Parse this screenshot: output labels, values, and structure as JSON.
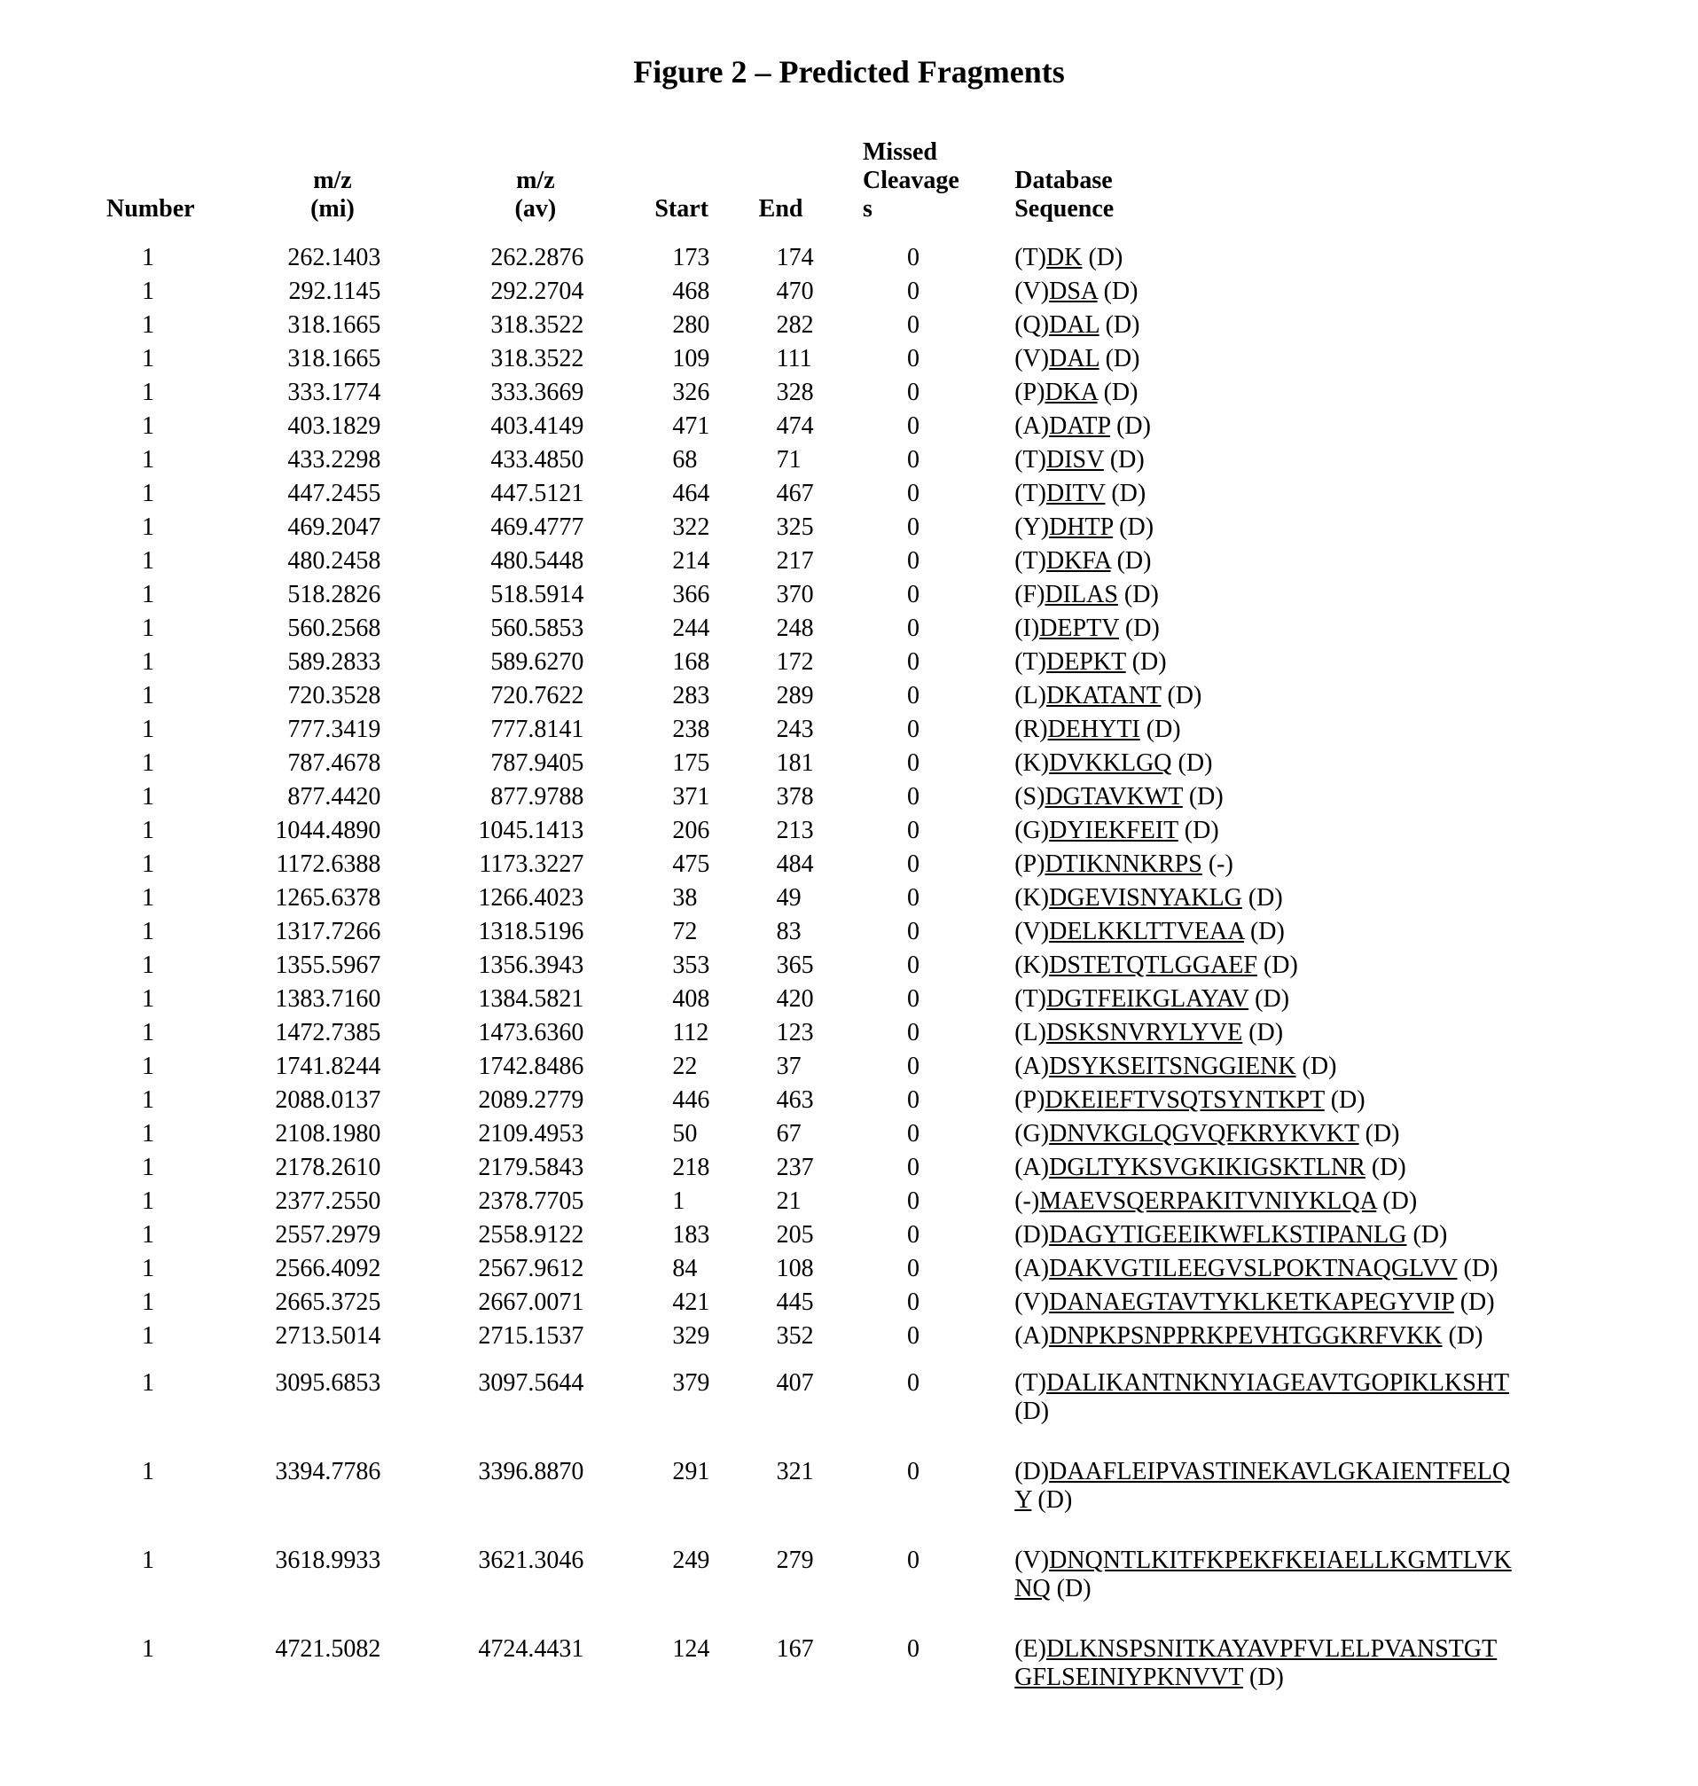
{
  "figureTitle": "Figure 2 – Predicted Fragments",
  "columns": {
    "number": "Number",
    "mz_mi": "m/z\n(mi)",
    "mz_av": "m/z\n(av)",
    "start": "Start",
    "end": "End",
    "missed": "Missed\nCleavage\ns",
    "sequence": "Database\nSequence"
  },
  "rows": [
    {
      "n": "1",
      "mz_mi": "262.1403",
      "mz_av": "262.2876",
      "start": "173",
      "end": "174",
      "mc": "0",
      "pre": "(T)",
      "core": "DK",
      "suf": " (D)"
    },
    {
      "n": "1",
      "mz_mi": "292.1145",
      "mz_av": "292.2704",
      "start": "468",
      "end": "470",
      "mc": "0",
      "pre": "(V)",
      "core": "DSA",
      "suf": " (D)"
    },
    {
      "n": "1",
      "mz_mi": "318.1665",
      "mz_av": "318.3522",
      "start": "280",
      "end": "282",
      "mc": "0",
      "pre": "(Q)",
      "core": "DAL",
      "suf": " (D)"
    },
    {
      "n": "1",
      "mz_mi": "318.1665",
      "mz_av": "318.3522",
      "start": "109",
      "end": "111",
      "mc": "0",
      "pre": "(V)",
      "core": "DAL",
      "suf": " (D)"
    },
    {
      "n": "1",
      "mz_mi": "333.1774",
      "mz_av": "333.3669",
      "start": "326",
      "end": "328",
      "mc": "0",
      "pre": "(P)",
      "core": "DKA",
      "suf": " (D)"
    },
    {
      "n": "1",
      "mz_mi": "403.1829",
      "mz_av": "403.4149",
      "start": "471",
      "end": "474",
      "mc": "0",
      "pre": "(A)",
      "core": "DATP",
      "suf": " (D)"
    },
    {
      "n": "1",
      "mz_mi": "433.2298",
      "mz_av": "433.4850",
      "start": "68",
      "end": "71",
      "mc": "0",
      "pre": "(T)",
      "core": "DISV",
      "suf": " (D)"
    },
    {
      "n": "1",
      "mz_mi": "447.2455",
      "mz_av": "447.5121",
      "start": "464",
      "end": "467",
      "mc": "0",
      "pre": "(T)",
      "core": "DITV",
      "suf": " (D)"
    },
    {
      "n": "1",
      "mz_mi": "469.2047",
      "mz_av": "469.4777",
      "start": "322",
      "end": "325",
      "mc": "0",
      "pre": "(Y)",
      "core": "DHTP",
      "suf": " (D)"
    },
    {
      "n": "1",
      "mz_mi": "480.2458",
      "mz_av": "480.5448",
      "start": "214",
      "end": "217",
      "mc": "0",
      "pre": "(T)",
      "core": "DKFA",
      "suf": " (D)"
    },
    {
      "n": "1",
      "mz_mi": "518.2826",
      "mz_av": "518.5914",
      "start": "366",
      "end": "370",
      "mc": "0",
      "pre": "(F)",
      "core": "DILAS",
      "suf": " (D)"
    },
    {
      "n": "1",
      "mz_mi": "560.2568",
      "mz_av": "560.5853",
      "start": "244",
      "end": "248",
      "mc": "0",
      "pre": "(I)",
      "core": "DEPTV",
      "suf": " (D)"
    },
    {
      "n": "1",
      "mz_mi": "589.2833",
      "mz_av": "589.6270",
      "start": "168",
      "end": "172",
      "mc": "0",
      "pre": "(T)",
      "core": "DEPKT",
      "suf": " (D)"
    },
    {
      "n": "1",
      "mz_mi": "720.3528",
      "mz_av": "720.7622",
      "start": "283",
      "end": "289",
      "mc": "0",
      "pre": "(L)",
      "core": "DKATANT",
      "suf": " (D)"
    },
    {
      "n": "1",
      "mz_mi": "777.3419",
      "mz_av": "777.8141",
      "start": "238",
      "end": "243",
      "mc": "0",
      "pre": "(R)",
      "core": "DEHYTI",
      "suf": " (D)"
    },
    {
      "n": "1",
      "mz_mi": "787.4678",
      "mz_av": "787.9405",
      "start": "175",
      "end": "181",
      "mc": "0",
      "pre": "(K)",
      "core": "DVKKLGQ",
      "suf": " (D)"
    },
    {
      "n": "1",
      "mz_mi": "877.4420",
      "mz_av": "877.9788",
      "start": "371",
      "end": "378",
      "mc": "0",
      "pre": "(S)",
      "core": "DGTAVKWT",
      "suf": " (D)"
    },
    {
      "n": "1",
      "mz_mi": "1044.4890",
      "mz_av": "1045.1413",
      "start": "206",
      "end": "213",
      "mc": "0",
      "pre": "(G)",
      "core": "DYIEKFEIT",
      "suf": " (D)"
    },
    {
      "n": "1",
      "mz_mi": "1172.6388",
      "mz_av": "1173.3227",
      "start": "475",
      "end": "484",
      "mc": "0",
      "pre": "(P)",
      "core": "DTIKNNKRPS",
      "suf": " (-)"
    },
    {
      "n": "1",
      "mz_mi": "1265.6378",
      "mz_av": "1266.4023",
      "start": "38",
      "end": "49",
      "mc": "0",
      "pre": "(K)",
      "core": "DGEVISNYAKLG",
      "suf": " (D)"
    },
    {
      "n": "1",
      "mz_mi": "1317.7266",
      "mz_av": "1318.5196",
      "start": "72",
      "end": "83",
      "mc": "0",
      "pre": "(V)",
      "core": "DELKKLTTVEAA",
      "suf": " (D)"
    },
    {
      "n": "1",
      "mz_mi": "1355.5967",
      "mz_av": "1356.3943",
      "start": "353",
      "end": "365",
      "mc": "0",
      "pre": "(K)",
      "core": "DSTETQTLGGAEF",
      "suf": " (D)"
    },
    {
      "n": "1",
      "mz_mi": "1383.7160",
      "mz_av": "1384.5821",
      "start": "408",
      "end": "420",
      "mc": "0",
      "pre": "(T)",
      "core": "DGTFEIKGLAYAV",
      "suf": " (D)"
    },
    {
      "n": "1",
      "mz_mi": "1472.7385",
      "mz_av": "1473.6360",
      "start": "112",
      "end": "123",
      "mc": "0",
      "pre": "(L)",
      "core": "DSKSNVRYLYVE",
      "suf": " (D)"
    },
    {
      "n": "1",
      "mz_mi": "1741.8244",
      "mz_av": "1742.8486",
      "start": "22",
      "end": "37",
      "mc": "0",
      "pre": "(A)",
      "core": "DSYKSEITSNGGIENK",
      "suf": " (D)"
    },
    {
      "n": "1",
      "mz_mi": "2088.0137",
      "mz_av": "2089.2779",
      "start": "446",
      "end": "463",
      "mc": "0",
      "pre": "(P)",
      "core": "DKEIEFTVSQTSYNTKPT",
      "suf": " (D)"
    },
    {
      "n": "1",
      "mz_mi": "2108.1980",
      "mz_av": "2109.4953",
      "start": "50",
      "end": "67",
      "mc": "0",
      "pre": "(G)",
      "core": "DNVKGLQGVQFKRYKVKT",
      "suf": " (D)"
    },
    {
      "n": "1",
      "mz_mi": "2178.2610",
      "mz_av": "2179.5843",
      "start": "218",
      "end": "237",
      "mc": "0",
      "pre": "(A)",
      "core": "DGLTYKSVGKIKIGSKTLNR",
      "suf": " (D)"
    },
    {
      "n": "1",
      "mz_mi": "2377.2550",
      "mz_av": "2378.7705",
      "start": "1",
      "end": "21",
      "mc": "0",
      "pre": "(-)",
      "core": "MAEVSQERPAKITVNIYKLQA",
      "suf": " (D)"
    },
    {
      "n": "1",
      "mz_mi": "2557.2979",
      "mz_av": "2558.9122",
      "start": "183",
      "end": "205",
      "mc": "0",
      "pre": "(D)",
      "core": "DAGYTIGEEIKWFLKSTIPANLG",
      "suf": " (D)"
    },
    {
      "n": "1",
      "mz_mi": "2566.4092",
      "mz_av": "2567.9612",
      "start": "84",
      "end": "108",
      "mc": "0",
      "pre": "(A)",
      "core": "DAKVGTILEEGVSLPOKTNAQGLVV",
      "suf": " (D)"
    },
    {
      "n": "1",
      "mz_mi": "2665.3725",
      "mz_av": "2667.0071",
      "start": "421",
      "end": "445",
      "mc": "0",
      "pre": "(V)",
      "core": "DANAEGTAVTYKLKETKAPEGYVIP",
      "suf": " (D)"
    },
    {
      "n": "1",
      "mz_mi": "2713.5014",
      "mz_av": "2715.1537",
      "start": "329",
      "end": "352",
      "mc": "0",
      "pre": "(A)",
      "core": "DNPKPSNPPRKPEVHTGGKRFVKK",
      "suf": " (D)"
    },
    {
      "n": "1",
      "mz_mi": "3095.6853",
      "mz_av": "3097.5644",
      "start": "379",
      "end": "407",
      "mc": "0",
      "pre": "(T)",
      "core": "DALIKANTNKNYIAGEAVTGOPIKLKSHT",
      "suf": "\n(D)",
      "gap": true
    },
    {
      "n": "1",
      "mz_mi": "3394.7786",
      "mz_av": "3396.8870",
      "start": "291",
      "end": "321",
      "mc": "0",
      "pre": "(D)",
      "core": "DAAFLEIPVASTINEKAVLGKAIENTFELQ\nY",
      "suf": " (D)",
      "gap": true
    },
    {
      "n": "1",
      "mz_mi": "3618.9933",
      "mz_av": "3621.3046",
      "start": "249",
      "end": "279",
      "mc": "0",
      "pre": "(V)",
      "core": "DNQNTLKITFKPEKFKEIAELLKGMTLVK\nNQ",
      "suf": " (D)",
      "gap": true
    },
    {
      "n": "1",
      "mz_mi": "4721.5082",
      "mz_av": "4724.4431",
      "start": "124",
      "end": "167",
      "mc": "0",
      "pre": "(E)",
      "core": "DLKNSPSNITKAYAVPFVLELPVANSTGT\nGFLSEINIYPKNVVT",
      "suf": " (D)",
      "gap": true
    }
  ]
}
